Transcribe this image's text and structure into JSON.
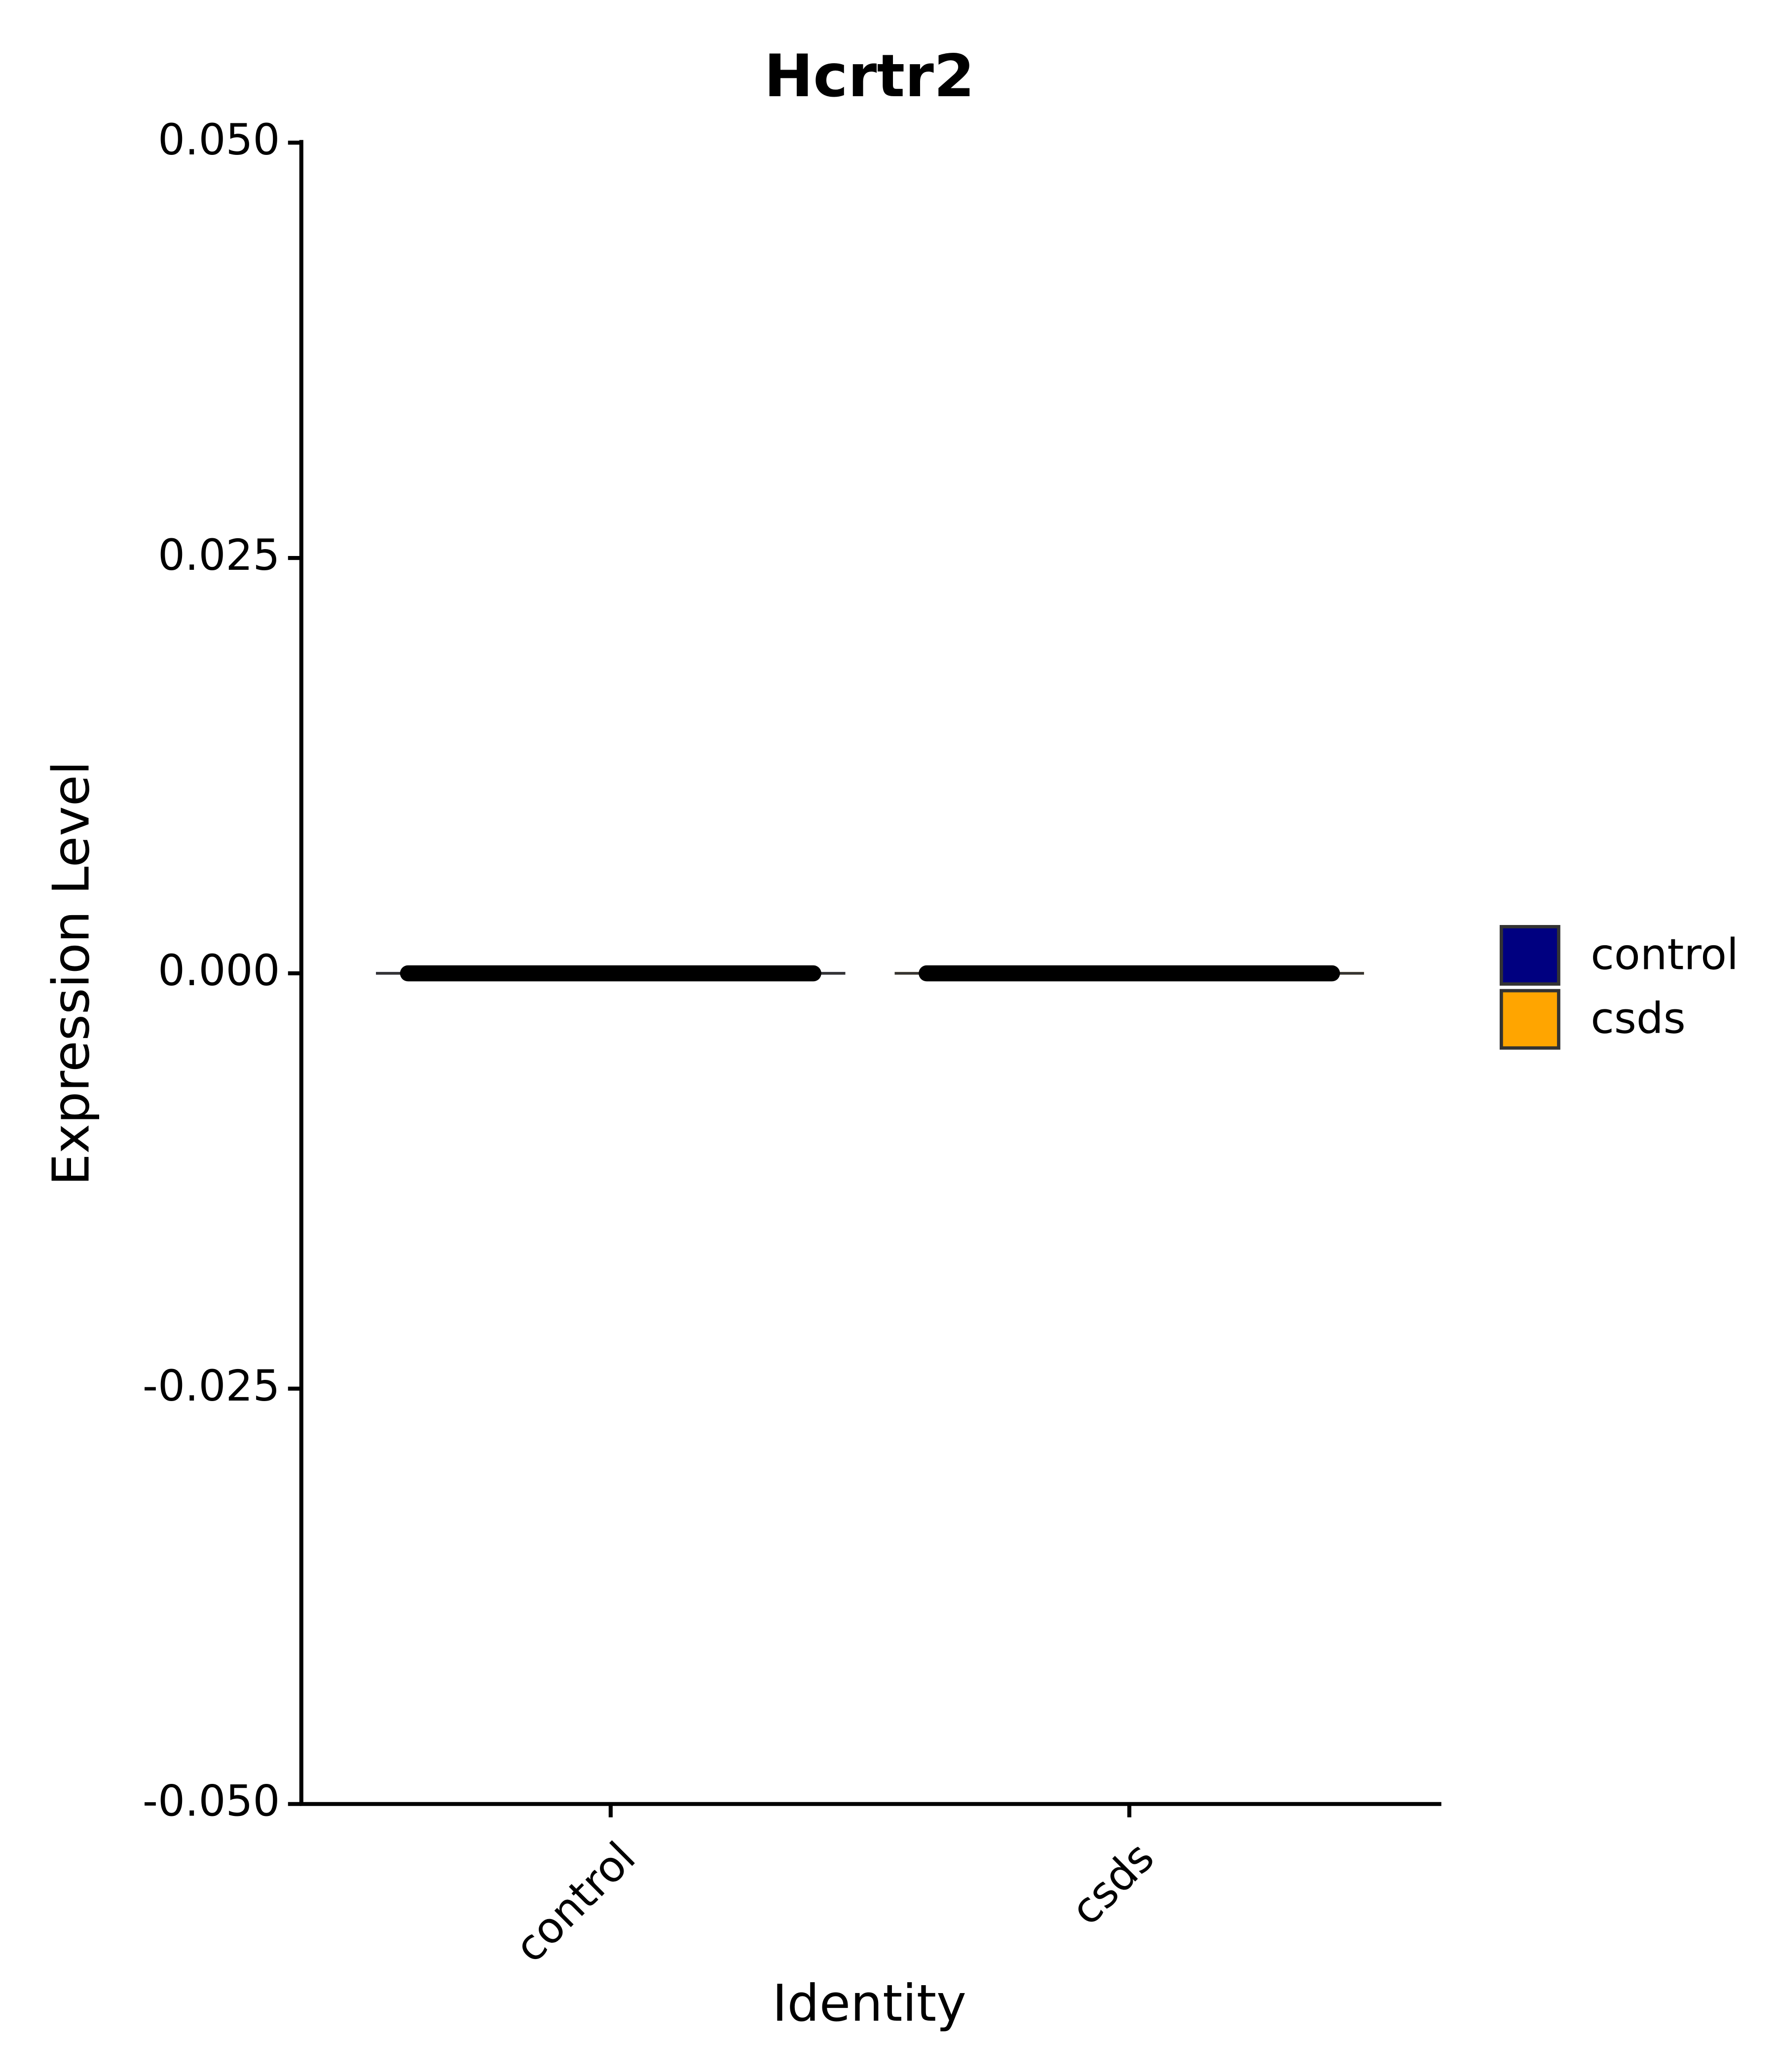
{
  "chart_data": {
    "type": "violin",
    "title": "Hcrtr2",
    "x_label": "Identity",
    "y_label": "Expression Level",
    "categories": [
      "control",
      "csds"
    ],
    "values": [
      0,
      0
    ],
    "colors": [
      "#000080",
      "#FFA500"
    ],
    "ylim": [
      -0.05,
      0.05
    ],
    "yticks": [
      {
        "value": -0.05,
        "label": "-0.050"
      },
      {
        "value": -0.025,
        "label": "-0.025"
      },
      {
        "value": 0,
        "label": "0.000"
      },
      {
        "value": 0.025,
        "label": "0.025"
      },
      {
        "value": 0.05,
        "label": "0.050"
      }
    ],
    "legend": "right",
    "grid": false
  }
}
